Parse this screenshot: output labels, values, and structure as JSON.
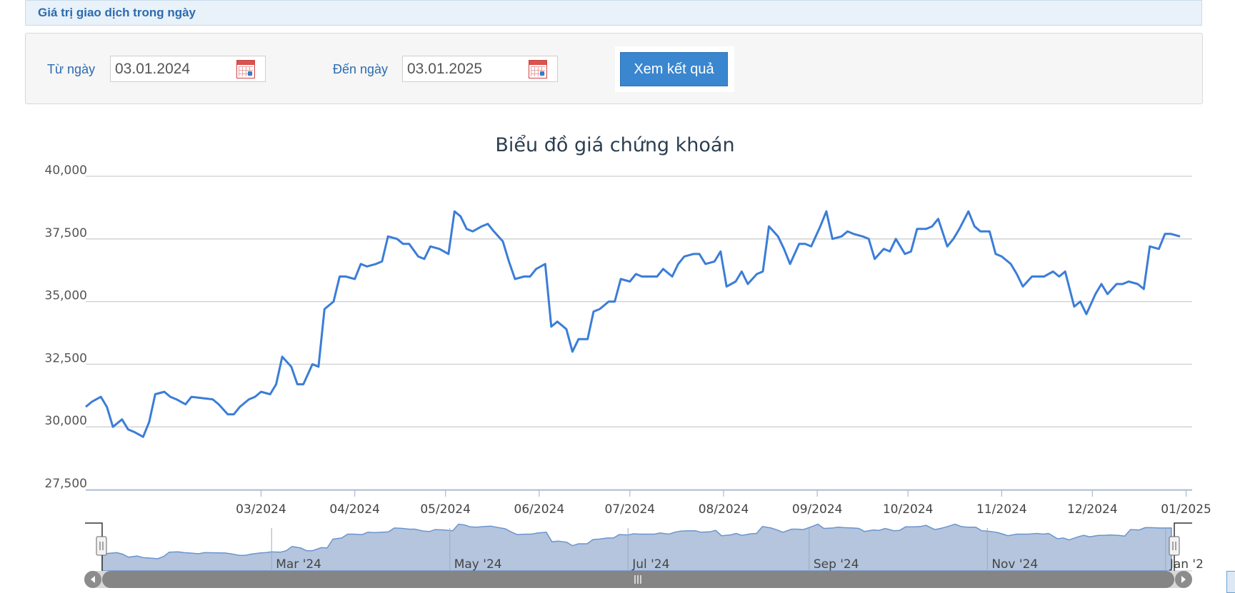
{
  "header": {
    "title": "Giá trị giao dịch trong ngày"
  },
  "filter": {
    "from_label": "Từ ngày",
    "from_value": "03.01.2024",
    "to_label": "Đến ngày",
    "to_value": "03.01.2025",
    "submit_label": "Xem kết quả"
  },
  "colors": {
    "line": "#3b7dd8",
    "navigator_fill": "#b4c5dd",
    "scrollbar": "#858585"
  },
  "chart_data": {
    "type": "line",
    "title": "Biểu đồ giá chứng khoán",
    "xlabel": "",
    "ylabel": "",
    "ylim": [
      27500,
      40000
    ],
    "yticks": [
      27500,
      30000,
      32500,
      35000,
      37500,
      40000
    ],
    "ytick_labels": [
      "27,500",
      "30,000",
      "32,500",
      "35,000",
      "37,500",
      "40,000"
    ],
    "xlim": [
      "2024-01-03",
      "2025-01-03"
    ],
    "xticks": [
      {
        "date": "2024-03-01",
        "label": "03/2024"
      },
      {
        "date": "2024-04-01",
        "label": "04/2024"
      },
      {
        "date": "2024-05-01",
        "label": "05/2024"
      },
      {
        "date": "2024-06-01",
        "label": "06/2024"
      },
      {
        "date": "2024-07-01",
        "label": "07/2024"
      },
      {
        "date": "2024-08-01",
        "label": "08/2024"
      },
      {
        "date": "2024-09-01",
        "label": "09/2024"
      },
      {
        "date": "2024-10-01",
        "label": "10/2024"
      },
      {
        "date": "2024-11-01",
        "label": "11/2024"
      },
      {
        "date": "2024-12-01",
        "label": "12/2024"
      },
      {
        "date": "2025-01-01",
        "label": "01/2025"
      }
    ],
    "navigator_ticks": [
      {
        "date": "2024-03-01",
        "label": "Mar '24"
      },
      {
        "date": "2024-05-01",
        "label": "May '24"
      },
      {
        "date": "2024-07-01",
        "label": "Jul '24"
      },
      {
        "date": "2024-09-01",
        "label": "Sep '24"
      },
      {
        "date": "2024-11-01",
        "label": "Nov '24"
      },
      {
        "date": "2025-01-01",
        "label": "Jan '2"
      }
    ],
    "grid": true,
    "legend": "none",
    "series": [
      {
        "points": [
          [
            "2024-01-03",
            30800
          ],
          [
            "2024-01-05",
            31000
          ],
          [
            "2024-01-08",
            31200
          ],
          [
            "2024-01-10",
            30800
          ],
          [
            "2024-01-12",
            30000
          ],
          [
            "2024-01-15",
            30300
          ],
          [
            "2024-01-17",
            29900
          ],
          [
            "2024-01-19",
            29800
          ],
          [
            "2024-01-22",
            29600
          ],
          [
            "2024-01-24",
            30200
          ],
          [
            "2024-01-26",
            31300
          ],
          [
            "2024-01-29",
            31400
          ],
          [
            "2024-01-31",
            31200
          ],
          [
            "2024-02-02",
            31100
          ],
          [
            "2024-02-05",
            30900
          ],
          [
            "2024-02-07",
            31200
          ],
          [
            "2024-02-14",
            31100
          ],
          [
            "2024-02-16",
            30900
          ],
          [
            "2024-02-19",
            30500
          ],
          [
            "2024-02-21",
            30500
          ],
          [
            "2024-02-23",
            30800
          ],
          [
            "2024-02-26",
            31100
          ],
          [
            "2024-02-28",
            31200
          ],
          [
            "2024-03-01",
            31400
          ],
          [
            "2024-03-04",
            31300
          ],
          [
            "2024-03-06",
            31700
          ],
          [
            "2024-03-08",
            32800
          ],
          [
            "2024-03-11",
            32400
          ],
          [
            "2024-03-13",
            31700
          ],
          [
            "2024-03-15",
            31700
          ],
          [
            "2024-03-18",
            32500
          ],
          [
            "2024-03-20",
            32400
          ],
          [
            "2024-03-22",
            34700
          ],
          [
            "2024-03-25",
            35000
          ],
          [
            "2024-03-27",
            36000
          ],
          [
            "2024-03-29",
            36000
          ],
          [
            "2024-04-01",
            35900
          ],
          [
            "2024-04-03",
            36500
          ],
          [
            "2024-04-05",
            36400
          ],
          [
            "2024-04-08",
            36500
          ],
          [
            "2024-04-10",
            36600
          ],
          [
            "2024-04-12",
            37600
          ],
          [
            "2024-04-15",
            37500
          ],
          [
            "2024-04-17",
            37300
          ],
          [
            "2024-04-19",
            37300
          ],
          [
            "2024-04-22",
            36800
          ],
          [
            "2024-04-24",
            36700
          ],
          [
            "2024-04-26",
            37200
          ],
          [
            "2024-04-29",
            37100
          ],
          [
            "2024-05-02",
            36900
          ],
          [
            "2024-05-04",
            38600
          ],
          [
            "2024-05-06",
            38400
          ],
          [
            "2024-05-08",
            37900
          ],
          [
            "2024-05-10",
            37800
          ],
          [
            "2024-05-13",
            38000
          ],
          [
            "2024-05-15",
            38100
          ],
          [
            "2024-05-17",
            37800
          ],
          [
            "2024-05-20",
            37400
          ],
          [
            "2024-05-22",
            36600
          ],
          [
            "2024-05-24",
            35900
          ],
          [
            "2024-05-27",
            36000
          ],
          [
            "2024-05-29",
            36000
          ],
          [
            "2024-05-31",
            36300
          ],
          [
            "2024-06-03",
            36500
          ],
          [
            "2024-06-05",
            34000
          ],
          [
            "2024-06-07",
            34200
          ],
          [
            "2024-06-10",
            33900
          ],
          [
            "2024-06-12",
            33000
          ],
          [
            "2024-06-14",
            33500
          ],
          [
            "2024-06-17",
            33500
          ],
          [
            "2024-06-19",
            34600
          ],
          [
            "2024-06-21",
            34700
          ],
          [
            "2024-06-24",
            35000
          ],
          [
            "2024-06-26",
            35000
          ],
          [
            "2024-06-28",
            35900
          ],
          [
            "2024-07-01",
            35800
          ],
          [
            "2024-07-03",
            36100
          ],
          [
            "2024-07-05",
            36000
          ],
          [
            "2024-07-08",
            36000
          ],
          [
            "2024-07-10",
            36000
          ],
          [
            "2024-07-12",
            36300
          ],
          [
            "2024-07-15",
            36000
          ],
          [
            "2024-07-17",
            36500
          ],
          [
            "2024-07-19",
            36800
          ],
          [
            "2024-07-22",
            36900
          ],
          [
            "2024-07-24",
            36900
          ],
          [
            "2024-07-26",
            36500
          ],
          [
            "2024-07-29",
            36600
          ],
          [
            "2024-07-31",
            37000
          ],
          [
            "2024-08-02",
            35600
          ],
          [
            "2024-08-05",
            35800
          ],
          [
            "2024-08-07",
            36200
          ],
          [
            "2024-08-09",
            35700
          ],
          [
            "2024-08-12",
            36100
          ],
          [
            "2024-08-14",
            36200
          ],
          [
            "2024-08-16",
            38000
          ],
          [
            "2024-08-19",
            37600
          ],
          [
            "2024-08-21",
            37100
          ],
          [
            "2024-08-23",
            36500
          ],
          [
            "2024-08-26",
            37300
          ],
          [
            "2024-08-28",
            37300
          ],
          [
            "2024-08-30",
            37200
          ],
          [
            "2024-09-02",
            38000
          ],
          [
            "2024-09-04",
            38600
          ],
          [
            "2024-09-06",
            37500
          ],
          [
            "2024-09-09",
            37600
          ],
          [
            "2024-09-11",
            37800
          ],
          [
            "2024-09-13",
            37700
          ],
          [
            "2024-09-16",
            37600
          ],
          [
            "2024-09-18",
            37500
          ],
          [
            "2024-09-20",
            36700
          ],
          [
            "2024-09-23",
            37100
          ],
          [
            "2024-09-25",
            37000
          ],
          [
            "2024-09-27",
            37500
          ],
          [
            "2024-09-30",
            36900
          ],
          [
            "2024-10-02",
            37000
          ],
          [
            "2024-10-04",
            37900
          ],
          [
            "2024-10-07",
            37900
          ],
          [
            "2024-10-09",
            38000
          ],
          [
            "2024-10-11",
            38300
          ],
          [
            "2024-10-14",
            37200
          ],
          [
            "2024-10-16",
            37500
          ],
          [
            "2024-10-18",
            37900
          ],
          [
            "2024-10-21",
            38600
          ],
          [
            "2024-10-23",
            38000
          ],
          [
            "2024-10-25",
            37800
          ],
          [
            "2024-10-28",
            37800
          ],
          [
            "2024-10-30",
            36900
          ],
          [
            "2024-11-01",
            36800
          ],
          [
            "2024-11-04",
            36500
          ],
          [
            "2024-11-06",
            36100
          ],
          [
            "2024-11-08",
            35600
          ],
          [
            "2024-11-11",
            36000
          ],
          [
            "2024-11-13",
            36000
          ],
          [
            "2024-11-15",
            36000
          ],
          [
            "2024-11-18",
            36200
          ],
          [
            "2024-11-20",
            36000
          ],
          [
            "2024-11-22",
            36200
          ],
          [
            "2024-11-25",
            34800
          ],
          [
            "2024-11-27",
            35000
          ],
          [
            "2024-11-29",
            34500
          ],
          [
            "2024-12-02",
            35300
          ],
          [
            "2024-12-04",
            35700
          ],
          [
            "2024-12-06",
            35300
          ],
          [
            "2024-12-09",
            35700
          ],
          [
            "2024-12-11",
            35700
          ],
          [
            "2024-12-13",
            35800
          ],
          [
            "2024-12-16",
            35700
          ],
          [
            "2024-12-18",
            35500
          ],
          [
            "2024-12-20",
            37200
          ],
          [
            "2024-12-23",
            37100
          ],
          [
            "2024-12-25",
            37700
          ],
          [
            "2024-12-27",
            37700
          ],
          [
            "2024-12-30",
            37600
          ]
        ]
      }
    ]
  }
}
